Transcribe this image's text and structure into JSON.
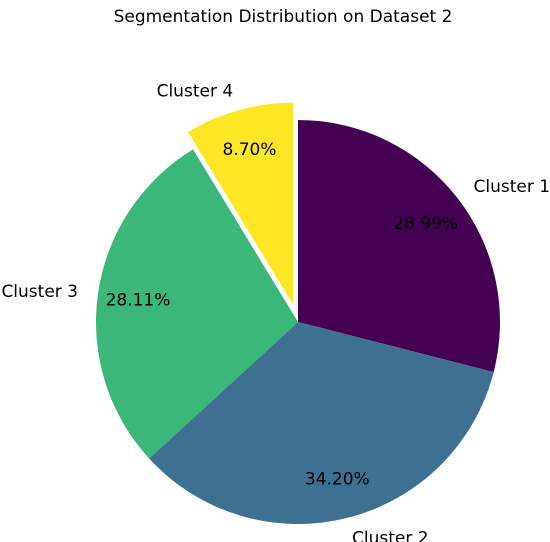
{
  "chart_data": {
    "type": "pie",
    "title": "Segmentation Distribution on Dataset 2",
    "slices": [
      {
        "label": "Cluster 1",
        "value": 28.99,
        "pct_text": "28.99%",
        "color": "#440154"
      },
      {
        "label": "Cluster 2",
        "value": 34.2,
        "pct_text": "34.20%",
        "color": "#3e7191"
      },
      {
        "label": "Cluster 3",
        "value": 28.11,
        "pct_text": "28.11%",
        "color": "#3bb77a"
      },
      {
        "label": "Cluster 4",
        "value": 8.7,
        "pct_text": "8.70%",
        "color": "#fde725",
        "exploded": true
      }
    ],
    "start_angle_deg": 90,
    "direction": "clockwise"
  }
}
